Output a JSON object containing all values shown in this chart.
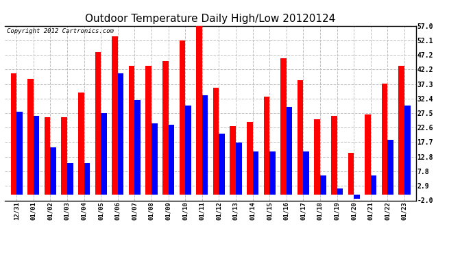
{
  "title": "Outdoor Temperature Daily High/Low 20120124",
  "copyright": "Copyright 2012 Cartronics.com",
  "labels": [
    "12/31",
    "01/01",
    "01/02",
    "01/03",
    "01/04",
    "01/05",
    "01/06",
    "01/07",
    "01/08",
    "01/09",
    "01/10",
    "01/11",
    "01/12",
    "01/13",
    "01/14",
    "01/15",
    "01/16",
    "01/17",
    "01/18",
    "01/19",
    "01/20",
    "01/21",
    "01/22",
    "01/23"
  ],
  "highs": [
    41.0,
    39.0,
    26.0,
    26.0,
    34.5,
    48.0,
    53.5,
    43.5,
    43.5,
    45.0,
    52.0,
    57.0,
    36.0,
    23.0,
    24.5,
    33.0,
    46.0,
    38.5,
    25.5,
    26.5,
    14.0,
    27.0,
    37.5,
    43.5
  ],
  "lows": [
    28.0,
    26.5,
    16.0,
    10.5,
    10.5,
    27.5,
    41.0,
    32.0,
    24.0,
    23.5,
    30.0,
    33.5,
    20.5,
    17.5,
    14.5,
    14.5,
    29.5,
    14.5,
    6.5,
    2.0,
    -1.5,
    6.5,
    18.5,
    30.0
  ],
  "ylim": [
    -2.0,
    57.0
  ],
  "yticks": [
    -2.0,
    2.9,
    7.8,
    12.8,
    17.7,
    22.6,
    27.5,
    32.4,
    37.3,
    42.2,
    47.2,
    52.1,
    57.0
  ],
  "bar_width": 0.35,
  "high_color": "#ff0000",
  "low_color": "#0000ff",
  "bg_color": "#ffffff",
  "grid_color": "#c0c0c0",
  "title_fontsize": 11
}
